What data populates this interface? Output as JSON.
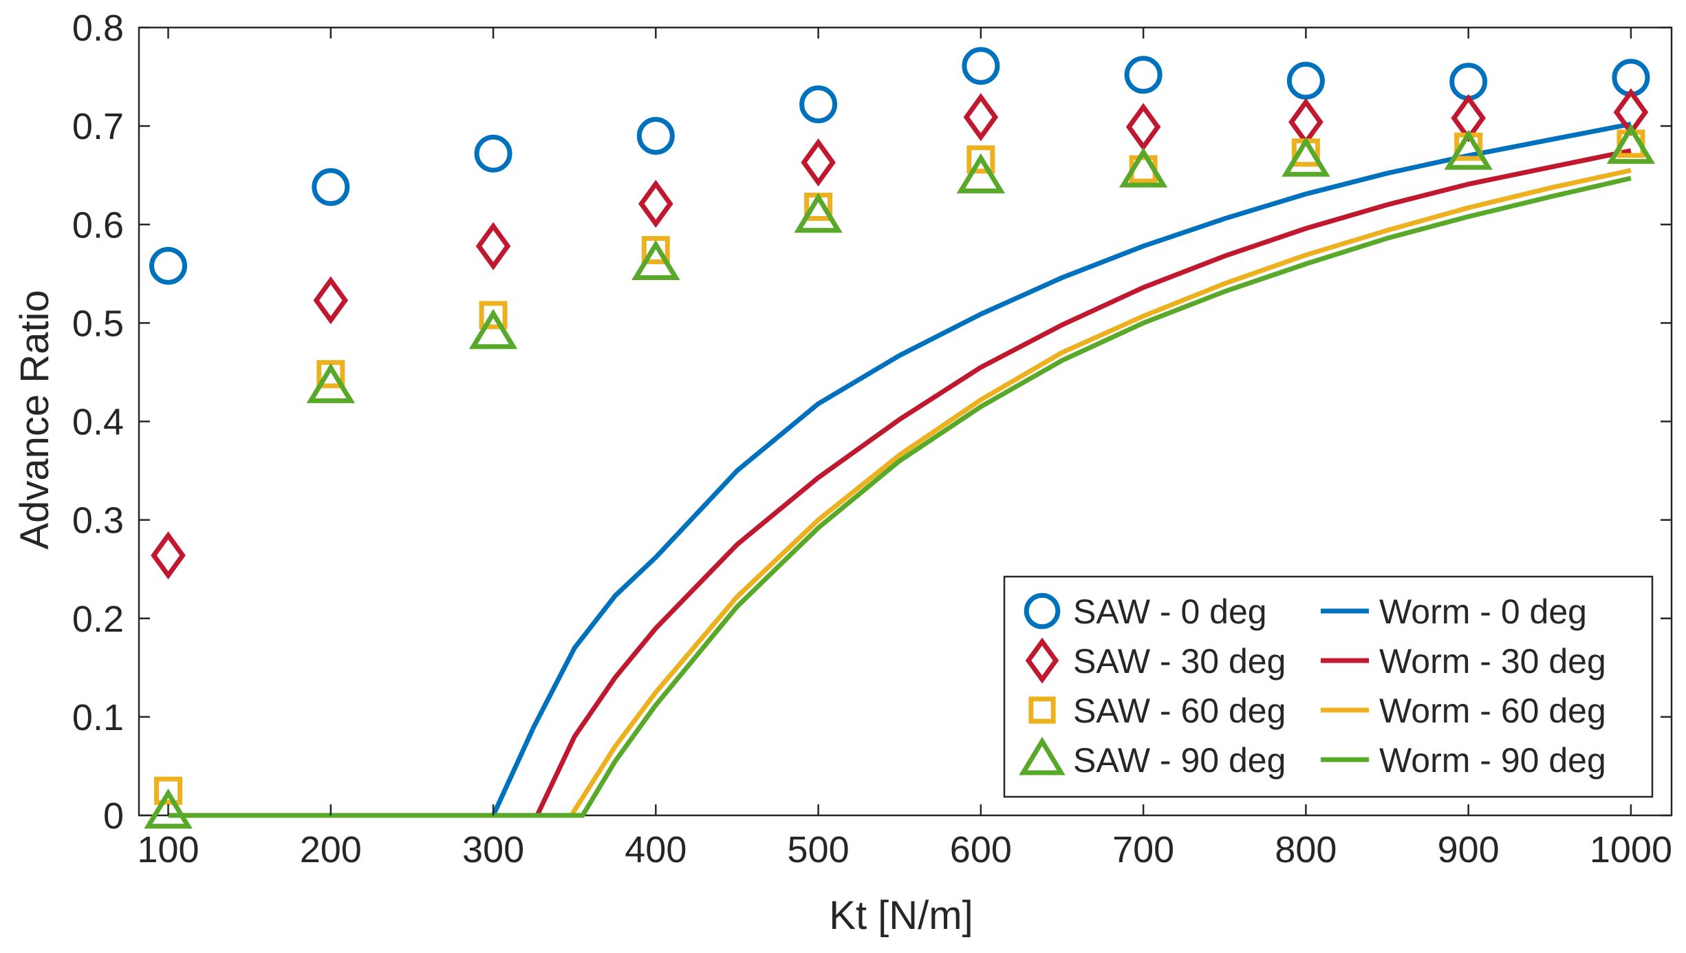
{
  "chart_data": {
    "type": "scatter",
    "title": "",
    "xlabel": "Kt [N/m]",
    "ylabel": "Advance Ratio",
    "xlim": [
      82,
      1025
    ],
    "ylim": [
      0,
      0.8
    ],
    "xticks": [
      100,
      200,
      300,
      400,
      500,
      600,
      700,
      800,
      900,
      1000
    ],
    "yticks": [
      0,
      0.1,
      0.2,
      0.3,
      0.4,
      0.5,
      0.6,
      0.7,
      0.8
    ],
    "xtick_labels": [
      "100",
      "200",
      "300",
      "400",
      "500",
      "600",
      "700",
      "800",
      "900",
      "1000"
    ],
    "ytick_labels": [
      "0",
      "0.1",
      "0.2",
      "0.3",
      "0.4",
      "0.5",
      "0.6",
      "0.7",
      "0.8"
    ],
    "grid": false,
    "legend_position": "bottom-right",
    "x": [
      100,
      200,
      300,
      400,
      500,
      600,
      700,
      800,
      900,
      1000
    ],
    "series": [
      {
        "name": "SAW - 0 deg",
        "kind": "marker",
        "marker": "circle",
        "color": "#0072BD",
        "values": [
          0.558,
          0.638,
          0.672,
          0.69,
          0.722,
          0.761,
          0.752,
          0.746,
          0.745,
          0.749
        ]
      },
      {
        "name": "SAW - 30 deg",
        "kind": "marker",
        "marker": "diamond",
        "color": "#C0182F",
        "values": [
          0.264,
          0.523,
          0.578,
          0.621,
          0.663,
          0.709,
          0.699,
          0.704,
          0.708,
          0.714
        ]
      },
      {
        "name": "SAW - 60 deg",
        "kind": "marker",
        "marker": "square",
        "color": "#EDB120",
        "values": [
          0.025,
          0.448,
          0.508,
          0.574,
          0.618,
          0.666,
          0.656,
          0.673,
          0.679,
          0.682
        ]
      },
      {
        "name": "SAW - 90 deg",
        "kind": "marker",
        "marker": "triangle",
        "color": "#58A82A",
        "values": [
          0.003,
          0.435,
          0.49,
          0.56,
          0.608,
          0.648,
          0.654,
          0.665,
          0.672,
          0.678
        ]
      },
      {
        "name": "Worm - 0 deg",
        "kind": "line",
        "color": "#0072BD",
        "x": [
          100,
          300,
          325,
          350,
          375,
          400,
          450,
          500,
          550,
          600,
          650,
          700,
          750,
          800,
          850,
          900,
          950,
          1000
        ],
        "values": [
          0,
          0,
          0.09,
          0.17,
          0.223,
          0.262,
          0.35,
          0.418,
          0.467,
          0.509,
          0.546,
          0.578,
          0.606,
          0.631,
          0.652,
          0.67,
          0.686,
          0.702
        ]
      },
      {
        "name": "Worm - 30 deg",
        "kind": "line",
        "color": "#C0182F",
        "x": [
          100,
          327,
          350,
          375,
          400,
          450,
          500,
          550,
          600,
          650,
          700,
          750,
          800,
          850,
          900,
          950,
          1000
        ],
        "values": [
          0,
          0,
          0.08,
          0.14,
          0.19,
          0.275,
          0.343,
          0.402,
          0.455,
          0.498,
          0.536,
          0.568,
          0.596,
          0.62,
          0.641,
          0.658,
          0.675
        ]
      },
      {
        "name": "Worm - 60 deg",
        "kind": "line",
        "color": "#EDB120",
        "x": [
          100,
          348,
          375,
          400,
          450,
          500,
          550,
          600,
          650,
          700,
          750,
          800,
          850,
          900,
          950,
          1000
        ],
        "values": [
          0,
          0,
          0.07,
          0.125,
          0.222,
          0.3,
          0.366,
          0.422,
          0.47,
          0.507,
          0.54,
          0.569,
          0.594,
          0.617,
          0.637,
          0.655
        ]
      },
      {
        "name": "Worm - 90 deg",
        "kind": "line",
        "color": "#58A82A",
        "x": [
          100,
          355,
          375,
          400,
          450,
          500,
          550,
          600,
          650,
          700,
          750,
          800,
          850,
          900,
          950,
          1000
        ],
        "values": [
          0,
          0,
          0.055,
          0.112,
          0.212,
          0.292,
          0.36,
          0.415,
          0.462,
          0.5,
          0.532,
          0.56,
          0.586,
          0.608,
          0.628,
          0.647
        ]
      }
    ]
  }
}
